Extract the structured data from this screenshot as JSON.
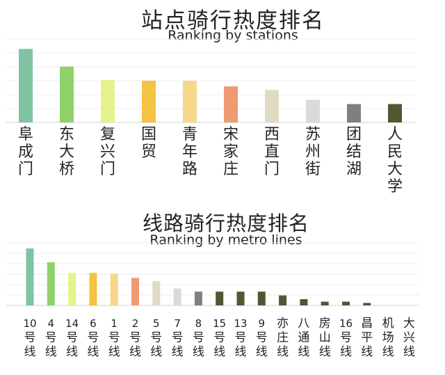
{
  "chart_data": [
    {
      "type": "bar",
      "title": "站点骑行热度排名",
      "subtitle": "Ranking by stations",
      "categories": [
        "阜成门",
        "东大桥",
        "复兴门",
        "国贸",
        "青年路",
        "宋家庄",
        "西直门",
        "苏州街",
        "团结湖",
        "人民大学"
      ],
      "values": [
        104,
        79,
        60,
        59,
        59,
        51,
        46,
        32,
        26,
        26
      ],
      "colors": [
        "#7fc4a3",
        "#8fd16a",
        "#e6f28b",
        "#f5c242",
        "#f7d78a",
        "#ee9b73",
        "#e0dcc3",
        "#d9d9d9",
        "#7f7f7f",
        "#545533"
      ],
      "ylim": [
        0,
        118
      ],
      "grid": true,
      "xlabel": "",
      "ylabel": ""
    },
    {
      "type": "bar",
      "title": "线路骑行热度排名",
      "subtitle": "Ranking by metro lines",
      "categories": [
        "10号线",
        "4号线",
        "14号线",
        "6号线",
        "1号线",
        "2号线",
        "5号线",
        "7号线",
        "8号线",
        "15号线",
        "13号线",
        "9号线",
        "亦庄线",
        "八通线",
        "房山线",
        "16号线",
        "昌平线",
        "机场线",
        "大兴线"
      ],
      "values": [
        91,
        69,
        52,
        52,
        51,
        44,
        39,
        27,
        22,
        22,
        22,
        22,
        16,
        10,
        6,
        6,
        4,
        0,
        0
      ],
      "colors": [
        "#7fc4a3",
        "#8fd16a",
        "#e6f28b",
        "#f5c242",
        "#f7d78a",
        "#ee9b73",
        "#e0dcc3",
        "#d9d9d9",
        "#7f7f7f",
        "#545533",
        "#545533",
        "#545533",
        "#545533",
        "#545533",
        "#545533",
        "#545533",
        "#545533",
        "#545533",
        "#545533"
      ],
      "ylim": [
        0,
        100
      ],
      "grid": true,
      "xlabel": "",
      "ylabel": ""
    }
  ]
}
